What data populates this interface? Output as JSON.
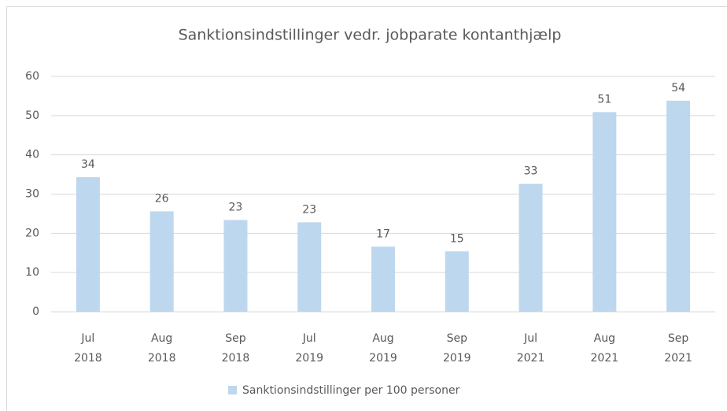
{
  "chart_data": {
    "type": "bar",
    "title": "Sanktionsindstillinger vedr. jobparate kontanthjælp",
    "categories": [
      [
        "Jul",
        "2018"
      ],
      [
        "Aug",
        "2018"
      ],
      [
        "Sep",
        "2018"
      ],
      [
        "Jul",
        "2019"
      ],
      [
        "Aug",
        "2019"
      ],
      [
        "Sep",
        "2019"
      ],
      [
        "Jul",
        "2021"
      ],
      [
        "Aug",
        "2021"
      ],
      [
        "Sep",
        "2021"
      ]
    ],
    "series": [
      {
        "name": "Sanktionsindstillinger per 100 personer",
        "color": "#bdd7ee",
        "values": [
          34.3,
          25.6,
          23.4,
          22.8,
          16.6,
          15.4,
          32.6,
          50.9,
          53.8
        ],
        "value_labels": [
          "34",
          "26",
          "23",
          "23",
          "17",
          "15",
          "33",
          "51",
          "54"
        ]
      }
    ],
    "ylim": [
      0,
      60
    ],
    "yticks": [
      0,
      10,
      20,
      30,
      40,
      50,
      60
    ],
    "grid": true,
    "legend": "bottom"
  }
}
